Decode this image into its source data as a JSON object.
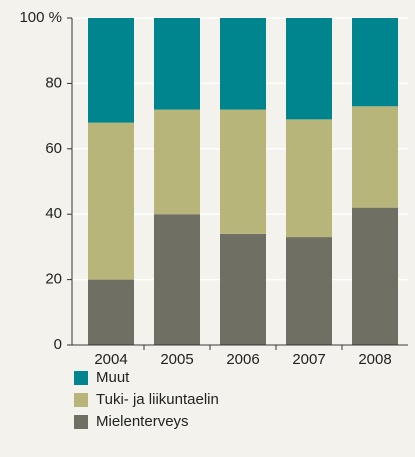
{
  "chart_data": {
    "type": "stacked_bar",
    "categories": [
      "2004",
      "2005",
      "2006",
      "2007",
      "2008"
    ],
    "series": [
      {
        "name": "Mielenterveys",
        "color": "#6f6f63",
        "values": [
          20,
          40,
          34,
          33,
          42
        ]
      },
      {
        "name": "Tuki- ja liikuntaelin",
        "color": "#b8b57a",
        "values": [
          48,
          32,
          38,
          36,
          31
        ]
      },
      {
        "name": "Muut",
        "color": "#00858f",
        "values": [
          32,
          28,
          28,
          31,
          27
        ]
      }
    ],
    "ylim": [
      0,
      100
    ],
    "yticks": [
      0,
      20,
      40,
      60,
      80,
      {
        "value": 100,
        "label": "100 %"
      }
    ],
    "grid": true
  }
}
